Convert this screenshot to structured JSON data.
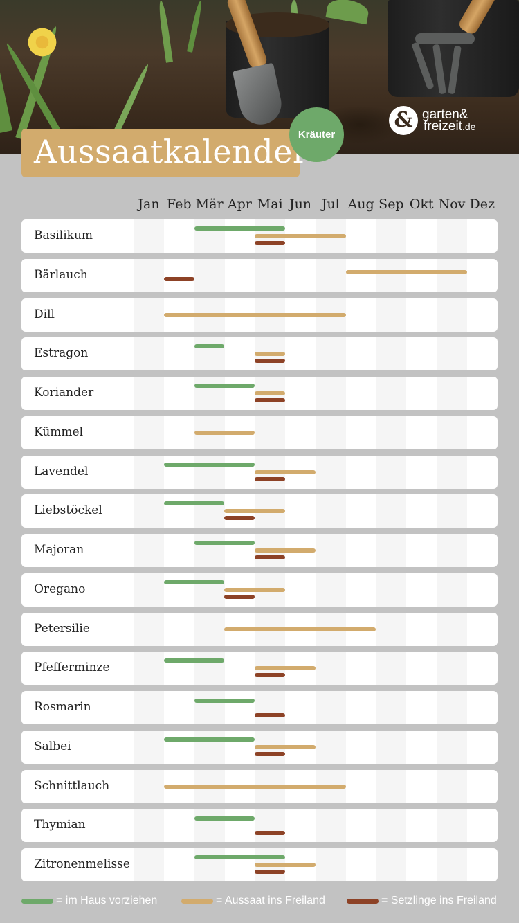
{
  "header": {
    "title": "Aussaatkalender",
    "badge": "Kräuter",
    "logo_mark": "&",
    "logo_line1": "garten&",
    "logo_line2": "freizeit",
    "logo_tld": ".de"
  },
  "colors": {
    "indoor": "#6ea96a",
    "outdoor_sowing": "#d2ab6d",
    "seedlings": "#8d4226",
    "background": "#c2c2c2",
    "title_box": "#d2ab6d"
  },
  "legend": [
    {
      "key": "indoor",
      "label": "= im Haus vorziehen"
    },
    {
      "key": "outdoor_sowing",
      "label": "= Aussaat ins Freiland"
    },
    {
      "key": "seedlings",
      "label": "= Setzlinge ins Freiland"
    }
  ],
  "chart_data": {
    "type": "gantt",
    "categories": [
      "Jan",
      "Feb",
      "Mär",
      "Apr",
      "Mai",
      "Jun",
      "Jul",
      "Aug",
      "Sep",
      "Okt",
      "Nov",
      "Dez"
    ],
    "series_keys": [
      "indoor",
      "outdoor_sowing",
      "seedlings"
    ],
    "series": [
      {
        "key": "indoor"
      },
      {
        "key": "outdoor_sowing"
      },
      {
        "key": "seedlings"
      }
    ],
    "rows": [
      {
        "name": "Basilikum",
        "indoor": [
          3,
          5
        ],
        "outdoor_sowing": [
          5,
          7
        ],
        "seedlings": [
          5,
          5
        ]
      },
      {
        "name": "Bärlauch",
        "outdoor_sowing": [
          8,
          11
        ],
        "seedlings": [
          2,
          2
        ]
      },
      {
        "name": "Dill",
        "outdoor_sowing": [
          2,
          7
        ]
      },
      {
        "name": "Estragon",
        "indoor": [
          3,
          3
        ],
        "outdoor_sowing": [
          5,
          5
        ],
        "seedlings": [
          5,
          5
        ]
      },
      {
        "name": "Koriander",
        "indoor": [
          3,
          4
        ],
        "outdoor_sowing": [
          5,
          5
        ],
        "seedlings": [
          5,
          5
        ]
      },
      {
        "name": "Kümmel",
        "outdoor_sowing": [
          3,
          4
        ]
      },
      {
        "name": "Lavendel",
        "indoor": [
          2,
          4
        ],
        "outdoor_sowing": [
          5,
          6
        ],
        "seedlings": [
          5,
          5
        ]
      },
      {
        "name": "Liebstöckel",
        "indoor": [
          2,
          3
        ],
        "outdoor_sowing": [
          4,
          5
        ],
        "seedlings": [
          4,
          4
        ]
      },
      {
        "name": "Majoran",
        "indoor": [
          3,
          4
        ],
        "outdoor_sowing": [
          5,
          6
        ],
        "seedlings": [
          5,
          5
        ]
      },
      {
        "name": "Oregano",
        "indoor": [
          2,
          3
        ],
        "outdoor_sowing": [
          4,
          5
        ],
        "seedlings": [
          4,
          4
        ]
      },
      {
        "name": "Petersilie",
        "outdoor_sowing": [
          4,
          8
        ]
      },
      {
        "name": "Pfefferminze",
        "indoor": [
          2,
          3
        ],
        "outdoor_sowing": [
          5,
          6
        ],
        "seedlings": [
          5,
          5
        ]
      },
      {
        "name": "Rosmarin",
        "indoor": [
          3,
          4
        ],
        "seedlings": [
          5,
          5
        ]
      },
      {
        "name": "Salbei",
        "indoor": [
          2,
          4
        ],
        "outdoor_sowing": [
          5,
          6
        ],
        "seedlings": [
          5,
          5
        ]
      },
      {
        "name": "Schnittlauch",
        "outdoor_sowing": [
          2,
          7
        ]
      },
      {
        "name": "Thymian",
        "indoor": [
          3,
          4
        ],
        "seedlings": [
          5,
          5
        ]
      },
      {
        "name": "Zitronenmelisse",
        "indoor": [
          3,
          5
        ],
        "outdoor_sowing": [
          5,
          6
        ],
        "seedlings": [
          5,
          5
        ]
      }
    ]
  }
}
